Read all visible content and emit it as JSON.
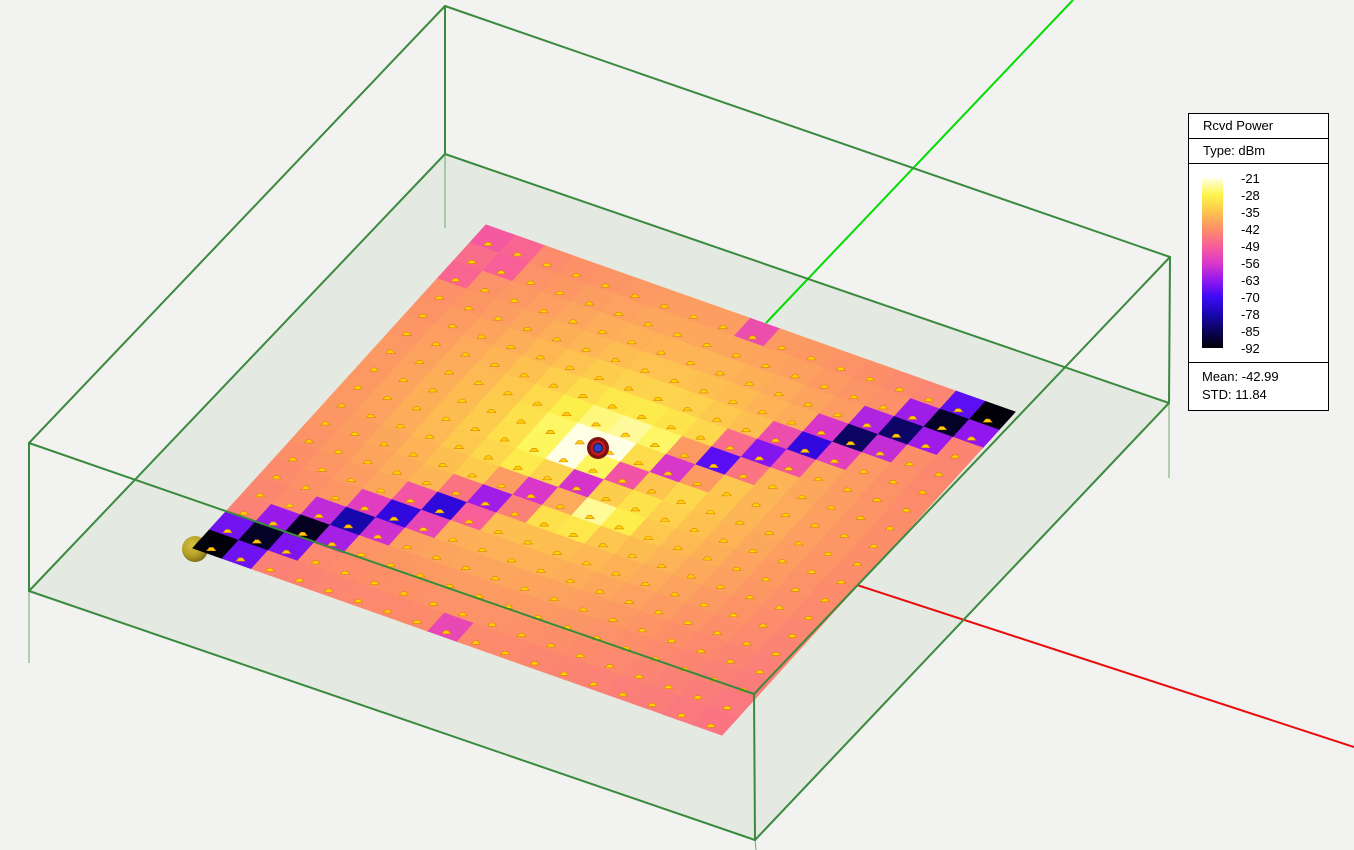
{
  "legend": {
    "title": "Rcvd Power",
    "type_label": "Type: dBm",
    "tick_labels": [
      "-21",
      "-28",
      "-35",
      "-42",
      "-49",
      "-56",
      "-63",
      "-70",
      "-78",
      "-85",
      "-92"
    ],
    "mean_label": "Mean: -42.99",
    "std_label": "STD: 11.84"
  },
  "colors": {
    "background": "#f2f2f0",
    "box_edge": "#3a8a3e",
    "box_edge_thin": "#6aaa6c",
    "floor_tint": "#e4e9e1",
    "axis_x_red": "#ea0c0c",
    "axis_y_green": "#00dc00",
    "glyph_fill": "#ffd200",
    "glyph_edge": "#e08200",
    "colormap_stops": [
      "#ffffe6",
      "#fdf54a",
      "#fdc44e",
      "#fc8f68",
      "#f85e98",
      "#dc38c8",
      "#9418ee",
      "#3f0af6",
      "#1808b0",
      "#0a0458",
      "#020008"
    ]
  },
  "markers": {
    "tx": {
      "name": "transmitter-sphere",
      "outer": "#7e1113",
      "ring": "#c51a1a",
      "center_ring": "#161c60",
      "center": "#2b43cd"
    },
    "rx": {
      "name": "receiver-sphere",
      "body": "#b59f28",
      "rim": "#6f5f10"
    }
  },
  "chart_data": {
    "type": "heatmap",
    "quantity": "Rcvd Power",
    "units": "dBm",
    "scale_values": [
      -21,
      -28,
      -35,
      -42,
      -49,
      -56,
      -63,
      -70,
      -78,
      -85,
      -92
    ],
    "mean": -42.99,
    "std": 11.84,
    "grid_rows": 18,
    "grid_cols": 18,
    "values": [
      [
        -50,
        -48,
        -42.4,
        -41.8,
        -41.2,
        -40.8,
        -40.4,
        -40.2,
        -40.1,
        -52,
        -40.6,
        -41,
        -41.5,
        -42,
        -42.7,
        -43.3,
        -67.6,
        -92
      ],
      [
        -47,
        -49,
        -41.6,
        -40.9,
        -40.2,
        -39.6,
        -39.1,
        -38.8,
        -38.7,
        -38.9,
        -39.3,
        -39.8,
        -40.5,
        -41.2,
        -41.9,
        -61.9,
        -89.3,
        -63.3
      ],
      [
        -48,
        -41.6,
        -40.8,
        -39.9,
        -39,
        -38.2,
        -37.6,
        -37.2,
        -37.1,
        -37.3,
        -37.8,
        -38.5,
        -39.4,
        -40.3,
        -60.4,
        -83.8,
        -62.1,
        -43.6
      ],
      [
        -41.9,
        -41,
        -40,
        -38.9,
        -37.8,
        -36.8,
        -35.9,
        -35.3,
        -35.2,
        -35.5,
        -36.2,
        -37.2,
        -38.2,
        -56.4,
        -84.3,
        -58.5,
        -42.3,
        -43.1
      ],
      [
        -41.5,
        -40.4,
        -39.2,
        -37.9,
        -36.6,
        -35.2,
        -33.9,
        -33,
        -32.7,
        -33.2,
        -34.4,
        -35.7,
        -52,
        -72.8,
        -54.6,
        -40.8,
        -41.9,
        -42.8
      ],
      [
        -41.1,
        -39.9,
        -38.5,
        -37,
        -35.4,
        -33.5,
        -31.5,
        -29.9,
        -29.4,
        -30.4,
        -32.3,
        -46.9,
        -64.5,
        -50.4,
        -39.1,
        -40.4,
        -41.5,
        -42.5
      ],
      [
        -40.8,
        -39.5,
        -38,
        -36.4,
        -34.4,
        -31.9,
        -28.9,
        -25.6,
        -24.3,
        -26.8,
        -40.7,
        -67.8,
        -45.8,
        -37.1,
        -38.7,
        -40,
        -41.2,
        -42.3
      ],
      [
        -40.7,
        -39.3,
        -37.8,
        -36,
        -33.8,
        -30.9,
        -26.8,
        -21,
        -21,
        -31.5,
        -56.3,
        -40.5,
        -34.7,
        -36.8,
        -38.5,
        -39.9,
        -41.1,
        -42.2
      ],
      [
        -40.7,
        -39.4,
        -37.8,
        -36.1,
        -33.9,
        -31.1,
        -27.1,
        -21,
        -27.1,
        -50.8,
        -35,
        -32.3,
        -34.8,
        -36.8,
        -38.5,
        -39.9,
        -41.1,
        -42.2
      ],
      [
        -40.8,
        -39.6,
        -38.1,
        -36.5,
        -34.5,
        -32.2,
        -29.4,
        -32.7,
        -56.8,
        -33.7,
        -30.6,
        -33.2,
        -35.4,
        -37.2,
        -38.7,
        -40.1,
        -41.3,
        -42.3
      ],
      [
        -41.1,
        -40,
        -38.7,
        -37.2,
        -35.6,
        -33.8,
        -40.3,
        -56.3,
        -38.5,
        -24.5,
        -29,
        -34.5,
        -36.3,
        -37.8,
        -39.2,
        -40.5,
        -41.6,
        -42.6
      ],
      [
        -41.5,
        -40.5,
        -39.4,
        -38.1,
        -36.8,
        -46,
        -61.8,
        -44,
        -31,
        -30,
        -34.7,
        -36,
        -37.3,
        -38.6,
        -39.8,
        -40.9,
        -41.9,
        -42.9
      ],
      [
        -42,
        -41.1,
        -40.1,
        -39.1,
        -50.7,
        -73.3,
        -49,
        -35.7,
        -35.6,
        -35.9,
        -36.6,
        -37.5,
        -38.5,
        -39.5,
        -40.6,
        -41.5,
        -42.4,
        -43.3
      ],
      [
        -42.6,
        -41.8,
        -41,
        -55,
        -72.8,
        -53.4,
        -37.9,
        -37.6,
        -37.5,
        -37.7,
        -38.1,
        -38.8,
        -39.6,
        -40.4,
        -41.3,
        -42.1,
        -42.9,
        -43.7
      ],
      [
        -43.2,
        -42.5,
        -58.9,
        -78.3,
        -57.5,
        -39.8,
        -39.4,
        -39.1,
        -39,
        -39.2,
        -39.5,
        -40,
        -40.7,
        -41.3,
        -42,
        -42.8,
        -43.5,
        -44.2
      ],
      [
        -43.8,
        -62.5,
        -89.8,
        -61.3,
        -41.4,
        -41,
        -40.7,
        -40.4,
        -40.4,
        -40.5,
        -40.8,
        -41.2,
        -41.6,
        -42.2,
        -42.8,
        -43.4,
        -44,
        -44.7
      ],
      [
        -65.9,
        -89.3,
        -64.8,
        -42.8,
        -42.4,
        -42,
        -41.8,
        -41.6,
        -41.6,
        -41.6,
        -41.9,
        -42.1,
        -42.6,
        -43,
        -43.5,
        -44,
        -44.6,
        -45.2
      ],
      [
        -92,
        -66.1,
        -44,
        -43.7,
        -43.3,
        -43,
        -42.8,
        -42.6,
        -53,
        -42.7,
        -42.8,
        -43.1,
        -43.4,
        -43.8,
        -44.3,
        -44.7,
        -45.2,
        -45.7
      ]
    ]
  }
}
